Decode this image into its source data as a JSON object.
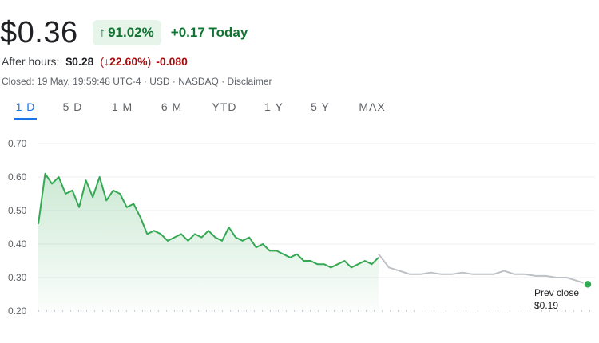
{
  "quote": {
    "price": "$0.36",
    "change_percent": "91.02%",
    "change_today": "+0.17 Today",
    "up_color": "#137333",
    "chip_bg": "#e6f4ea"
  },
  "after_hours": {
    "label": "After hours:",
    "price": "$0.28",
    "change_percent": "22.60%",
    "change": "-0.080",
    "down_color": "#a50e0e"
  },
  "closed_info": {
    "text": "Closed: 19 May, 19:59:48 UTC-4 · USD · NASDAQ · Disclaimer"
  },
  "tabs": [
    {
      "label": "1 D",
      "active": true
    },
    {
      "label": "5 D",
      "active": false
    },
    {
      "label": "1 M",
      "active": false
    },
    {
      "label": "6 M",
      "active": false
    },
    {
      "label": "YTD",
      "active": false
    },
    {
      "label": "1 Y",
      "active": false
    },
    {
      "label": "5 Y",
      "active": false
    },
    {
      "label": "MAX",
      "active": false
    }
  ],
  "chart_data": {
    "type": "line",
    "y_ticks": [
      "0.70",
      "0.60",
      "0.50",
      "0.40",
      "0.30",
      "0.20"
    ],
    "ylim": [
      0.2,
      0.7
    ],
    "prev_close_label": "Prev close",
    "prev_close_value": "$0.19",
    "series": [
      {
        "session": "regular",
        "color": "#34a853",
        "x": [
          0,
          0.02,
          0.04,
          0.06,
          0.08,
          0.1,
          0.12,
          0.14,
          0.16,
          0.18,
          0.2,
          0.22,
          0.24,
          0.26,
          0.28,
          0.3,
          0.32,
          0.34,
          0.36,
          0.38,
          0.4,
          0.42,
          0.44,
          0.46,
          0.48,
          0.5,
          0.52,
          0.54,
          0.56,
          0.58,
          0.6,
          0.62,
          0.64,
          0.66,
          0.68,
          0.7,
          0.72,
          0.74,
          0.76,
          0.78,
          0.8,
          0.82,
          0.84,
          0.86,
          0.88,
          0.9,
          0.92,
          0.94,
          0.96,
          0.98,
          1.0
        ],
        "values": [
          0.46,
          0.61,
          0.58,
          0.6,
          0.55,
          0.56,
          0.51,
          0.59,
          0.54,
          0.6,
          0.53,
          0.56,
          0.55,
          0.51,
          0.52,
          0.48,
          0.43,
          0.44,
          0.43,
          0.41,
          0.42,
          0.43,
          0.41,
          0.43,
          0.42,
          0.44,
          0.42,
          0.41,
          0.45,
          0.42,
          0.41,
          0.42,
          0.39,
          0.4,
          0.38,
          0.38,
          0.37,
          0.36,
          0.37,
          0.35,
          0.35,
          0.34,
          0.34,
          0.33,
          0.34,
          0.35,
          0.33,
          0.34,
          0.35,
          0.34,
          0.36
        ]
      },
      {
        "session": "after_hours",
        "color": "#bdc1c6",
        "x": [
          1.0,
          1.05,
          1.1,
          1.15,
          1.2,
          1.25,
          1.3,
          1.35,
          1.4,
          1.45,
          1.5,
          1.55,
          1.6,
          1.65,
          1.7,
          1.75,
          1.8,
          1.85,
          1.9,
          1.95,
          2.0
        ],
        "values": [
          0.37,
          0.33,
          0.32,
          0.31,
          0.31,
          0.315,
          0.31,
          0.31,
          0.315,
          0.31,
          0.31,
          0.31,
          0.32,
          0.31,
          0.31,
          0.305,
          0.305,
          0.3,
          0.3,
          0.29,
          0.28
        ]
      }
    ]
  }
}
